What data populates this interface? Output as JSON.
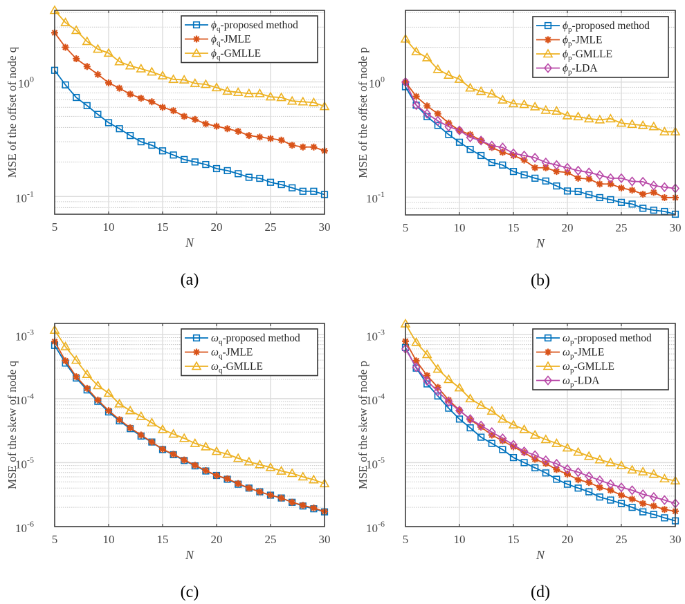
{
  "colors": {
    "proposed": "#0072BD",
    "jmle": "#D95319",
    "gmlle": "#EDB120",
    "lda": "#B847A7",
    "axis": "#404040",
    "grid": "#dcdcdc"
  },
  "chart_data": [
    {
      "type": "line",
      "caption": "(a)",
      "xlabel": "N",
      "ylabel": "MSE of the offset of node q",
      "yscale": "log",
      "xlim": [
        5,
        30
      ],
      "ylim": [
        0.07,
        4.2
      ],
      "grid": true,
      "legend_position": "top-right",
      "xticks": [
        "5",
        "10",
        "15",
        "20",
        "25",
        "30"
      ],
      "yticks": [
        {
          "value": 1,
          "base": "10",
          "exp": "0"
        },
        {
          "value": 0.1,
          "base": "10",
          "exp": "-1"
        }
      ],
      "x": [
        5,
        6,
        7,
        8,
        9,
        10,
        11,
        12,
        13,
        14,
        15,
        16,
        17,
        18,
        19,
        20,
        21,
        22,
        23,
        24,
        25,
        26,
        27,
        28,
        29,
        30
      ],
      "series": [
        {
          "symbol": "ϕ",
          "sub": "q",
          "name": "-proposed method",
          "marker": "square",
          "color_key": "proposed",
          "values": [
            1.26,
            0.94,
            0.73,
            0.62,
            0.52,
            0.44,
            0.39,
            0.34,
            0.3,
            0.28,
            0.25,
            0.23,
            0.21,
            0.2,
            0.19,
            0.175,
            0.168,
            0.158,
            0.147,
            0.144,
            0.133,
            0.127,
            0.119,
            0.111,
            0.111,
            0.104
          ]
        },
        {
          "symbol": "ϕ",
          "sub": "q",
          "name": "-JMLE",
          "marker": "asterisk",
          "color_key": "jmle",
          "values": [
            2.68,
            2.0,
            1.59,
            1.36,
            1.16,
            0.98,
            0.88,
            0.78,
            0.72,
            0.67,
            0.6,
            0.56,
            0.5,
            0.47,
            0.43,
            0.41,
            0.39,
            0.37,
            0.34,
            0.33,
            0.32,
            0.31,
            0.28,
            0.27,
            0.27,
            0.25
          ]
        },
        {
          "symbol": "ϕ",
          "sub": "q",
          "name": "-GMLLE",
          "marker": "triangle",
          "color_key": "gmlle",
          "values": [
            4.2,
            3.29,
            2.81,
            2.25,
            1.93,
            1.78,
            1.5,
            1.38,
            1.3,
            1.22,
            1.13,
            1.05,
            1.04,
            0.97,
            0.95,
            0.89,
            0.83,
            0.81,
            0.79,
            0.79,
            0.74,
            0.73,
            0.68,
            0.67,
            0.66,
            0.61
          ]
        }
      ]
    },
    {
      "type": "line",
      "caption": "(b)",
      "xlabel": "N",
      "ylabel": "MSE of the offset of node p",
      "yscale": "log",
      "xlim": [
        5,
        30
      ],
      "ylim": [
        0.07,
        4.2
      ],
      "grid": true,
      "legend_position": "top-right",
      "xticks": [
        "5",
        "10",
        "15",
        "20",
        "25",
        "30"
      ],
      "yticks": [
        {
          "value": 1,
          "base": "10",
          "exp": "0"
        },
        {
          "value": 0.1,
          "base": "10",
          "exp": "-1"
        }
      ],
      "x": [
        5,
        6,
        7,
        8,
        9,
        10,
        11,
        12,
        13,
        14,
        15,
        16,
        17,
        18,
        19,
        20,
        21,
        22,
        23,
        24,
        25,
        26,
        27,
        28,
        29,
        30
      ],
      "series": [
        {
          "symbol": "ϕ",
          "sub": "p",
          "name": "-proposed method",
          "marker": "square",
          "color_key": "proposed",
          "values": [
            0.91,
            0.63,
            0.5,
            0.42,
            0.35,
            0.3,
            0.26,
            0.23,
            0.2,
            0.19,
            0.167,
            0.156,
            0.146,
            0.138,
            0.125,
            0.113,
            0.112,
            0.105,
            0.099,
            0.095,
            0.09,
            0.087,
            0.08,
            0.077,
            0.075,
            0.071
          ]
        },
        {
          "symbol": "ϕ",
          "sub": "p",
          "name": "-JMLE",
          "marker": "asterisk",
          "color_key": "jmle",
          "values": [
            1.0,
            0.75,
            0.62,
            0.53,
            0.44,
            0.38,
            0.35,
            0.31,
            0.27,
            0.245,
            0.23,
            0.21,
            0.18,
            0.18,
            0.167,
            0.164,
            0.146,
            0.144,
            0.13,
            0.13,
            0.12,
            0.115,
            0.106,
            0.11,
            0.099,
            0.099
          ]
        },
        {
          "symbol": "ϕ",
          "sub": "p",
          "name": "-GMLLE",
          "marker": "triangle",
          "color_key": "gmlle",
          "values": [
            2.37,
            1.84,
            1.63,
            1.29,
            1.15,
            1.06,
            0.89,
            0.83,
            0.79,
            0.7,
            0.65,
            0.64,
            0.61,
            0.57,
            0.56,
            0.51,
            0.5,
            0.48,
            0.47,
            0.48,
            0.44,
            0.43,
            0.42,
            0.41,
            0.37,
            0.37
          ]
        },
        {
          "symbol": "ϕ",
          "sub": "p",
          "name": "-LDA",
          "marker": "diamond",
          "color_key": "lda",
          "values": [
            1.0,
            0.63,
            0.53,
            0.46,
            0.41,
            0.38,
            0.33,
            0.31,
            0.28,
            0.27,
            0.24,
            0.23,
            0.22,
            0.2,
            0.19,
            0.18,
            0.17,
            0.164,
            0.155,
            0.146,
            0.146,
            0.137,
            0.136,
            0.126,
            0.122,
            0.119
          ]
        }
      ]
    },
    {
      "type": "line",
      "caption": "(c)",
      "xlabel": "N",
      "ylabel": "MSE of the skew of node q",
      "yscale": "log",
      "xlim": [
        5,
        30
      ],
      "ylim": [
        1e-06,
        0.0015
      ],
      "grid": true,
      "legend_position": "top-right",
      "xticks": [
        "5",
        "10",
        "15",
        "20",
        "25",
        "30"
      ],
      "yticks": [
        {
          "value": 0.001,
          "base": "10",
          "exp": "-3"
        },
        {
          "value": 0.0001,
          "base": "10",
          "exp": "-4"
        },
        {
          "value": 1e-05,
          "base": "10",
          "exp": "-5"
        },
        {
          "value": 1e-06,
          "base": "10",
          "exp": "-6"
        }
      ],
      "x": [
        5,
        6,
        7,
        8,
        9,
        10,
        11,
        12,
        13,
        14,
        15,
        16,
        17,
        18,
        19,
        20,
        21,
        22,
        23,
        24,
        25,
        26,
        27,
        28,
        29,
        30
      ],
      "series": [
        {
          "symbol": "ω",
          "sub": "q",
          "name": "-proposed method",
          "marker": "square",
          "color_key": "proposed",
          "values": [
            0.00068,
            0.00036,
            0.00021,
            0.000137,
            9.1e-05,
            6.2e-05,
            4.5e-05,
            3.4e-05,
            2.6e-05,
            2.1e-05,
            1.6e-05,
            1.33e-05,
            1.08e-05,
            8.9e-06,
            7.4e-06,
            6.3e-06,
            5.5e-06,
            4.6e-06,
            4e-06,
            3.5e-06,
            3.1e-06,
            2.8e-06,
            2.4e-06,
            2.1e-06,
            1.9e-06,
            1.7e-06
          ]
        },
        {
          "symbol": "ω",
          "sub": "q",
          "name": "-JMLE",
          "marker": "asterisk",
          "color_key": "jmle",
          "values": [
            0.00078,
            0.00039,
            0.00022,
            0.000145,
            9.5e-05,
            6.5e-05,
            4.7e-05,
            3.5e-05,
            2.7e-05,
            2.1e-05,
            1.62e-05,
            1.35e-05,
            1.1e-05,
            9.1e-06,
            7.5e-06,
            6.3e-06,
            5.6e-06,
            4.7e-06,
            4e-06,
            3.5e-06,
            3.1e-06,
            2.8e-06,
            2.4e-06,
            2.15e-06,
            1.95e-06,
            1.72e-06
          ]
        },
        {
          "symbol": "ω",
          "sub": "q",
          "name": "-GMLLE",
          "marker": "triangle",
          "color_key": "gmlle",
          "values": [
            0.00118,
            0.00065,
            0.0004,
            0.00024,
            0.00016,
            0.000122,
            8.3e-05,
            6.5e-05,
            5.3e-05,
            4.2e-05,
            3.3e-05,
            2.8e-05,
            2.4e-05,
            2e-05,
            1.77e-05,
            1.5e-05,
            1.36e-05,
            1.17e-05,
            1.03e-05,
            9.3e-06,
            8.4e-06,
            7.4e-06,
            6.8e-06,
            6e-06,
            5.4e-06,
            4.7e-06
          ]
        }
      ]
    },
    {
      "type": "line",
      "caption": "(d)",
      "xlabel": "N",
      "ylabel": "MSE of the skew of node p",
      "yscale": "log",
      "xlim": [
        5,
        30
      ],
      "ylim": [
        1e-06,
        0.0015
      ],
      "grid": true,
      "legend_position": "top-right",
      "xticks": [
        "5",
        "10",
        "15",
        "20",
        "25",
        "30"
      ],
      "yticks": [
        {
          "value": 0.001,
          "base": "10",
          "exp": "-3"
        },
        {
          "value": 0.0001,
          "base": "10",
          "exp": "-4"
        },
        {
          "value": 1e-05,
          "base": "10",
          "exp": "-5"
        },
        {
          "value": 1e-06,
          "base": "10",
          "exp": "-6"
        }
      ],
      "x": [
        5,
        6,
        7,
        8,
        9,
        10,
        11,
        12,
        13,
        14,
        15,
        16,
        17,
        18,
        19,
        20,
        21,
        22,
        23,
        24,
        25,
        26,
        27,
        28,
        29,
        30
      ],
      "series": [
        {
          "symbol": "ω",
          "sub": "p",
          "name": "-proposed method",
          "marker": "square",
          "color_key": "proposed",
          "values": [
            0.00063,
            0.0003,
            0.00017,
            0.00011,
            7.1e-05,
            4.8e-05,
            3.5e-05,
            2.5e-05,
            2e-05,
            1.6e-05,
            1.2e-05,
            1e-05,
            8.3e-06,
            6.9e-06,
            5.5e-06,
            4.6e-06,
            4e-06,
            3.5e-06,
            2.9e-06,
            2.6e-06,
            2.3e-06,
            2e-06,
            1.7e-06,
            1.55e-06,
            1.37e-06,
            1.23e-06
          ]
        },
        {
          "symbol": "ω",
          "sub": "p",
          "name": "-JMLE",
          "marker": "asterisk",
          "color_key": "jmle",
          "values": [
            0.00079,
            0.00039,
            0.00023,
            0.00015,
            9.5e-05,
            6.6e-05,
            4.7e-05,
            3.6e-05,
            2.7e-05,
            2.2e-05,
            1.77e-05,
            1.44e-05,
            1.13e-05,
            9.7e-06,
            7.8e-06,
            6.6e-06,
            5.4e-06,
            4.9e-06,
            4.1e-06,
            3.7e-06,
            3.1e-06,
            2.7e-06,
            2.3e-06,
            2.1e-06,
            1.85e-06,
            1.74e-06
          ]
        },
        {
          "symbol": "ω",
          "sub": "p",
          "name": "-GMLLE",
          "marker": "triangle",
          "color_key": "gmlle",
          "values": [
            0.00148,
            0.00076,
            0.00049,
            0.00029,
            0.0002,
            0.000148,
            0.0001,
            7.9e-05,
            6.4e-05,
            4.8e-05,
            3.9e-05,
            3.3e-05,
            2.7e-05,
            2.3e-05,
            2e-05,
            1.7e-05,
            1.46e-05,
            1.26e-05,
            1.11e-05,
            1e-05,
            9e-06,
            7.7e-06,
            7.2e-06,
            6.6e-06,
            5.6e-06,
            5.2e-06
          ]
        },
        {
          "symbol": "ω",
          "sub": "p",
          "name": "-LDA",
          "marker": "diamond",
          "color_key": "lda",
          "values": [
            0.0006,
            0.00031,
            0.00019,
            0.00013,
            8.9e-05,
            6.5e-05,
            4.8e-05,
            3.8e-05,
            3e-05,
            2.4e-05,
            1.9e-05,
            1.5e-05,
            1.31e-05,
            1.09e-05,
            9.6e-06,
            7.9e-06,
            7.1e-06,
            6.1e-06,
            5.3e-06,
            4.6e-06,
            4.1e-06,
            3.7e-06,
            3.2e-06,
            2.9e-06,
            2.6e-06,
            2.3e-06
          ]
        }
      ]
    }
  ]
}
